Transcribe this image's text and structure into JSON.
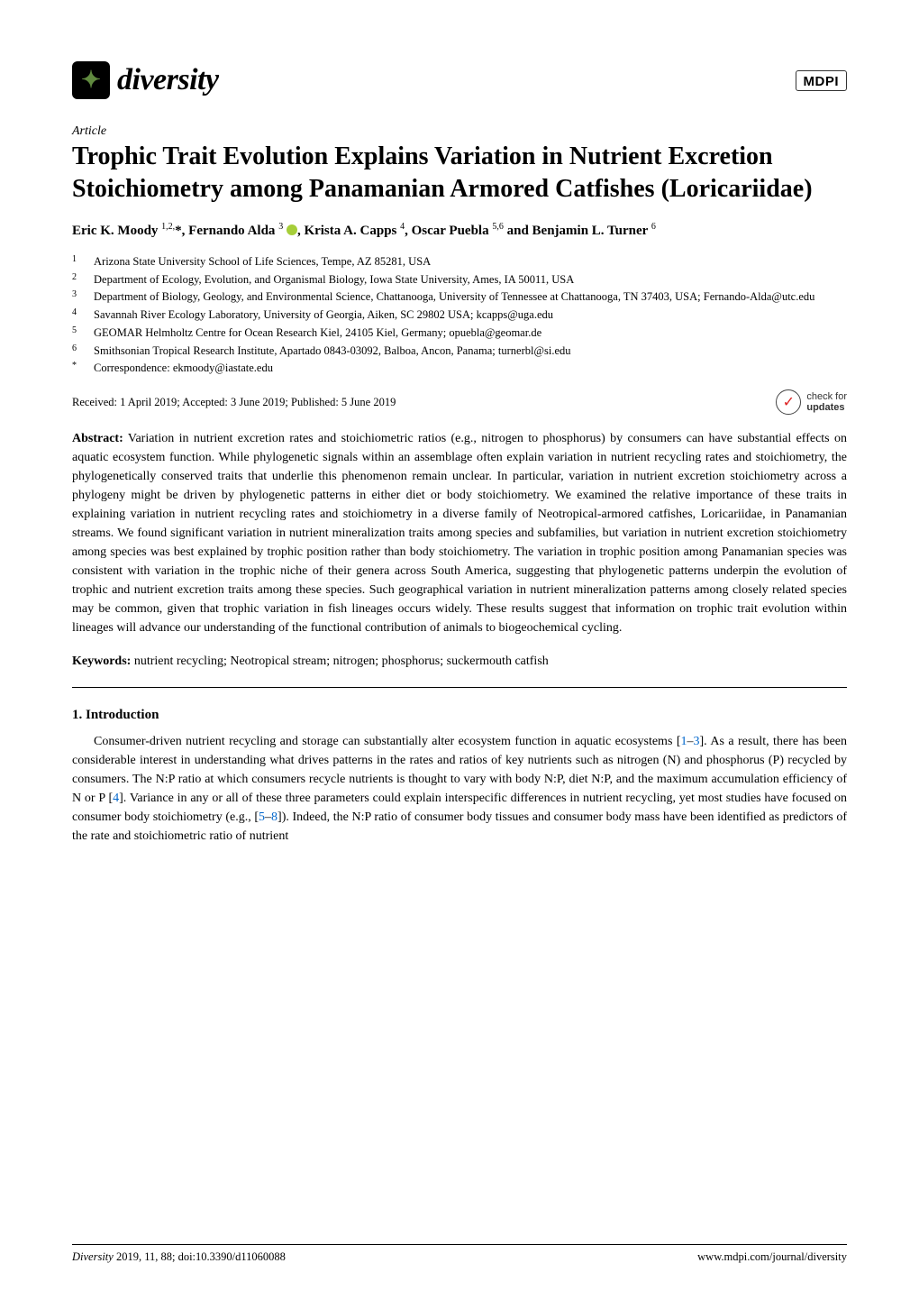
{
  "journal": {
    "name": "diversity",
    "logo_glyph": "✦",
    "logo_bg": "#000000",
    "logo_accent": "#608a3f"
  },
  "publisher_logo": "MDPI",
  "article_type": "Article",
  "title": "Trophic Trait Evolution Explains Variation in Nutrient Excretion Stoichiometry among Panamanian Armored Catfishes (Loricariidae)",
  "authors_html": "Eric K. Moody <sup>1,2,</sup>*, Fernando Alda <sup>3</sup> <span class='orcid-icon' data-name='orcid-icon' data-interactable='false'></span>, Krista A. Capps <sup>4</sup>, Oscar Puebla <sup>5,6</sup> and Benjamin L. Turner <sup>6</sup>",
  "affiliations": [
    {
      "num": "1",
      "text": "Arizona State University School of Life Sciences, Tempe, AZ 85281, USA"
    },
    {
      "num": "2",
      "text": "Department of Ecology, Evolution, and Organismal Biology, Iowa State University, Ames, IA 50011, USA"
    },
    {
      "num": "3",
      "text": "Department of Biology, Geology, and Environmental Science, Chattanooga, University of Tennessee at Chattanooga, TN 37403, USA; Fernando-Alda@utc.edu"
    },
    {
      "num": "4",
      "text": "Savannah River Ecology Laboratory, University of Georgia, Aiken, SC 29802 USA; kcapps@uga.edu"
    },
    {
      "num": "5",
      "text": "GEOMAR Helmholtz Centre for Ocean Research Kiel, 24105 Kiel, Germany; opuebla@geomar.de"
    },
    {
      "num": "6",
      "text": "Smithsonian Tropical Research Institute, Apartado 0843-03092, Balboa, Ancon, Panama; turnerbl@si.edu"
    },
    {
      "num": "*",
      "text": "Correspondence: ekmoody@iastate.edu"
    }
  ],
  "dates": "Received: 1 April 2019; Accepted: 3 June 2019; Published: 5 June 2019",
  "updates_badge": {
    "top": "check for",
    "bottom": "updates"
  },
  "abstract": {
    "label": "Abstract:",
    "text": "Variation in nutrient excretion rates and stoichiometric ratios (e.g., nitrogen to phosphorus) by consumers can have substantial effects on aquatic ecosystem function. While phylogenetic signals within an assemblage often explain variation in nutrient recycling rates and stoichiometry, the phylogenetically conserved traits that underlie this phenomenon remain unclear. In particular, variation in nutrient excretion stoichiometry across a phylogeny might be driven by phylogenetic patterns in either diet or body stoichiometry. We examined the relative importance of these traits in explaining variation in nutrient recycling rates and stoichiometry in a diverse family of Neotropical-armored catfishes, Loricariidae, in Panamanian streams. We found significant variation in nutrient mineralization traits among species and subfamilies, but variation in nutrient excretion stoichiometry among species was best explained by trophic position rather than body stoichiometry. The variation in trophic position among Panamanian species was consistent with variation in the trophic niche of their genera across South America, suggesting that phylogenetic patterns underpin the evolution of trophic and nutrient excretion traits among these species. Such geographical variation in nutrient mineralization patterns among closely related species may be common, given that trophic variation in fish lineages occurs widely. These results suggest that information on trophic trait evolution within lineages will advance our understanding of the functional contribution of animals to biogeochemical cycling."
  },
  "keywords": {
    "label": "Keywords:",
    "text": "nutrient recycling; Neotropical stream; nitrogen; phosphorus; suckermouth catfish"
  },
  "section1": {
    "heading": "1. Introduction",
    "para1_parts": [
      "Consumer-driven nutrient recycling and storage can substantially alter ecosystem function in aquatic ecosystems [",
      "1",
      "–",
      "3",
      "]. As a result, there has been considerable interest in understanding what drives patterns in the rates and ratios of key nutrients such as nitrogen (N) and phosphorus (P) recycled by consumers. The N:P ratio at which consumers recycle nutrients is thought to vary with body N:P, diet N:P, and the maximum accumulation efficiency of N or P [",
      "4",
      "]. Variance in any or all of these three parameters could explain interspecific differences in nutrient recycling, yet most studies have focused on consumer body stoichiometry (e.g., [",
      "5",
      "–",
      "8",
      "]). Indeed, the N:P ratio of consumer body tissues and consumer body mass have been identified as predictors of the rate and stoichiometric ratio of nutrient"
    ]
  },
  "footer": {
    "left_italic": "Diversity",
    "left_rest": "2019, 11, 88; doi:10.3390/d11060088",
    "right": "www.mdpi.com/journal/diversity"
  },
  "colors": {
    "link": "#0066cc",
    "orcid": "#a6ce39"
  }
}
